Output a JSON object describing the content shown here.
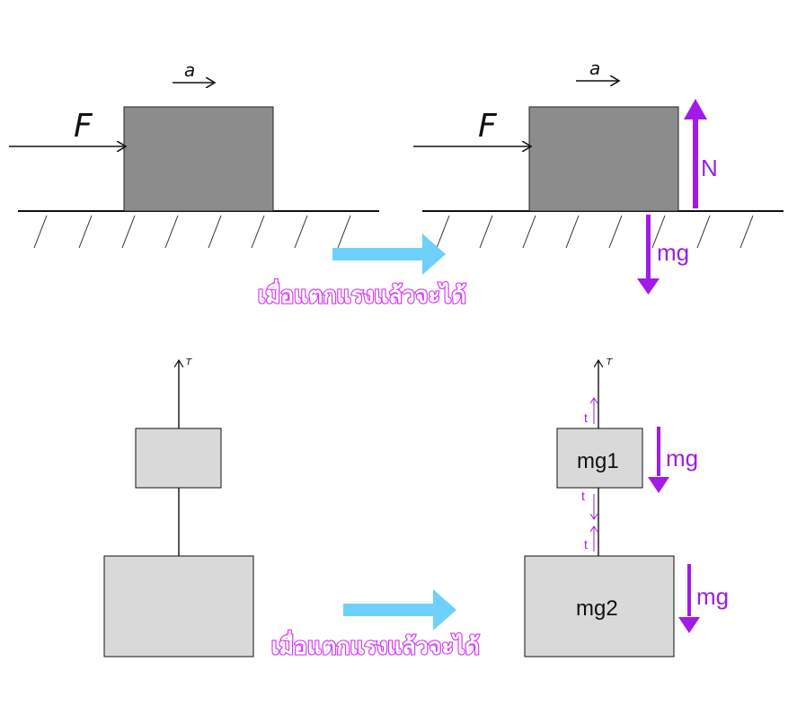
{
  "labels": {
    "force": "F",
    "acceleration": "a",
    "normal": "N",
    "weight": "mg",
    "tension_top": "T",
    "tension_small": "t",
    "mass1": "mg1",
    "mass2": "mg2",
    "caption": "เมื่อแตกแรงแล้วจะได้"
  },
  "colors": {
    "force_vector": "#a21ae8",
    "transition_arrow": "#6fd0fb",
    "heavy_block": "#8c8c8c",
    "light_block": "#d9d9d9",
    "caption_outline": "#d63cf5"
  }
}
